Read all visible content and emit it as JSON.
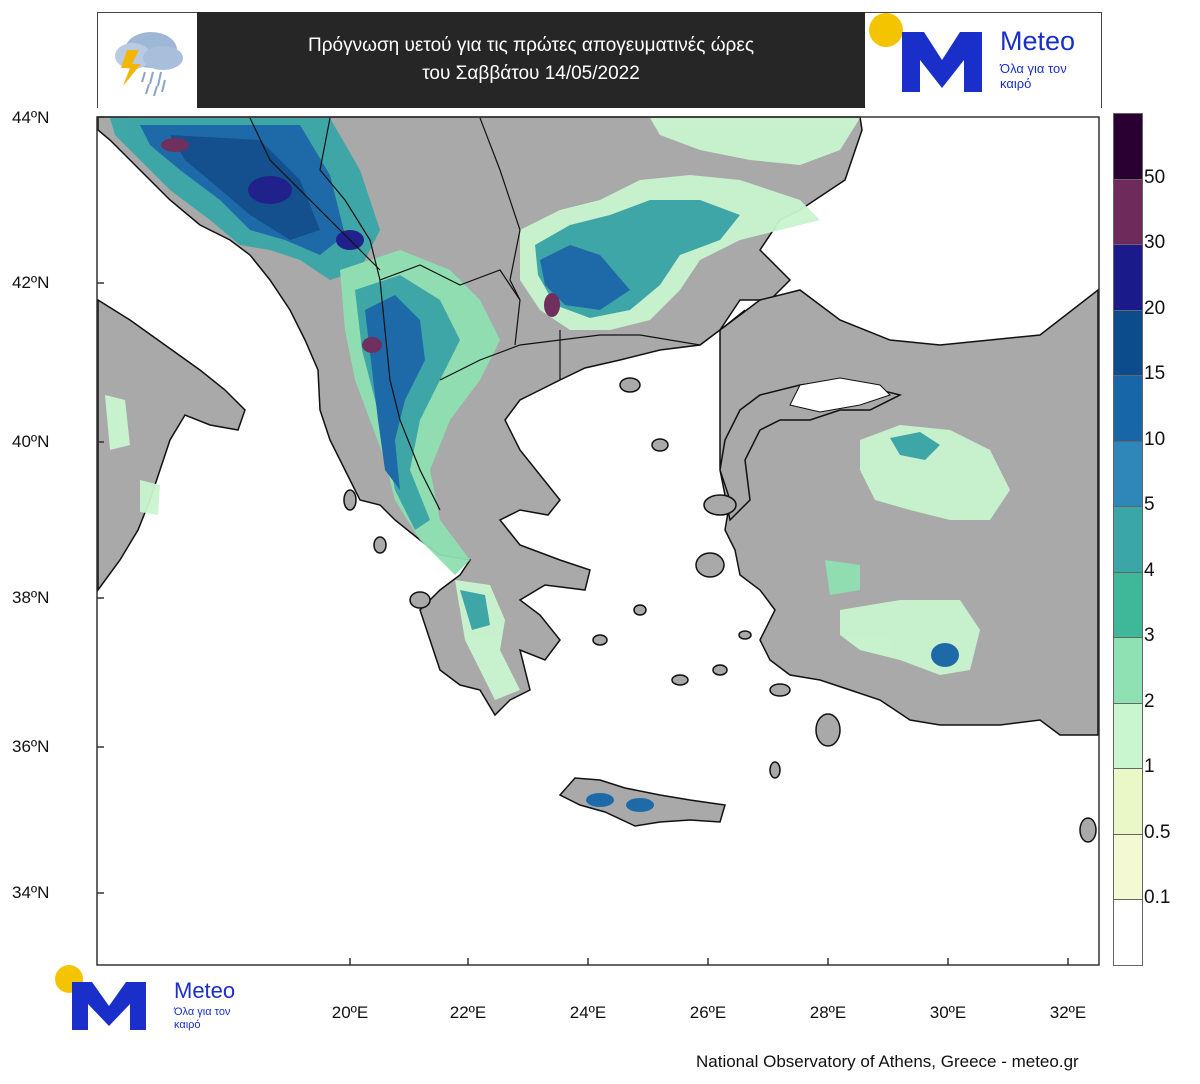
{
  "header": {
    "title_line1": "Πρόγνωση υετού για τις πρώτες απογευματινές ώρες",
    "title_line2": "του Σαββάτου 14/05/2022",
    "weather_icon": "cloud-rain-lightning-icon"
  },
  "logo": {
    "brand": "Meteo",
    "tagline": "Όλα για τον καιρό",
    "colors": {
      "primary": "#1a2fc9",
      "sun": "#f5c400"
    }
  },
  "map": {
    "lat_labels": [
      "44ºN",
      "42ºN",
      "40ºN",
      "38ºN",
      "36ºN",
      "34ºN"
    ],
    "lon_labels": [
      "20ºE",
      "22ºE",
      "24ºE",
      "26ºE",
      "28ºE",
      "30ºE",
      "32ºE"
    ],
    "land_color": "#a9a9a9",
    "sea_color": "#ffffff"
  },
  "legend": {
    "labels": [
      "50",
      "30",
      "20",
      "15",
      "10",
      "5",
      "4",
      "3",
      "2",
      "1",
      "0.5",
      "0.1"
    ],
    "colors": [
      "#2a0033",
      "#6e2a5a",
      "#1a1a8a",
      "#0d4c8c",
      "#1767a8",
      "#2f86b8",
      "#3aa6a8",
      "#3fb89a",
      "#8fe0b3",
      "#c9f5cf",
      "#eaf7c6",
      "#f3f9d2",
      "#ffffff"
    ]
  },
  "credit": "National Observatory of Athens, Greece - meteo.gr"
}
